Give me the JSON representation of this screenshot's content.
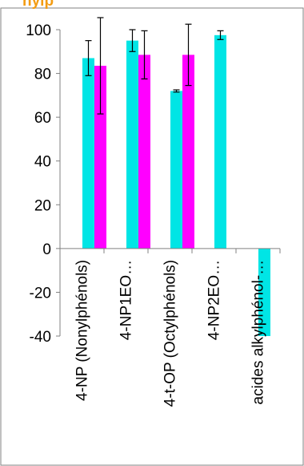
{
  "colors": {
    "title": "#f39c12",
    "frame": "#808080",
    "axis": "#808080",
    "errorbar": "#000000"
  },
  "title_fragment": "nylp",
  "chart_data": {
    "type": "bar",
    "categories": [
      "4-NP (Nonylphénols)",
      "4-NP1EO…",
      "4-t-OP (Octylphénols)",
      "4-NP2EO…",
      "acides alkylphénol-…"
    ],
    "ylim": [
      -40,
      100
    ],
    "yticks": [
      "100",
      "80",
      "60",
      "40",
      "20",
      "0",
      "-20",
      "-40"
    ],
    "ytick_values": [
      100,
      80,
      60,
      40,
      20,
      0,
      -20,
      -40
    ],
    "grid": false,
    "series": [
      {
        "color": "#00e5e5",
        "values": [
          87,
          95,
          72,
          97.5,
          -40
        ],
        "error": [
          8,
          5,
          0.5,
          2,
          null
        ]
      },
      {
        "color": "#ff00ff",
        "values": [
          83.5,
          88.5,
          88.5,
          null,
          null
        ],
        "error": [
          22,
          11,
          14,
          null,
          null
        ]
      }
    ]
  }
}
